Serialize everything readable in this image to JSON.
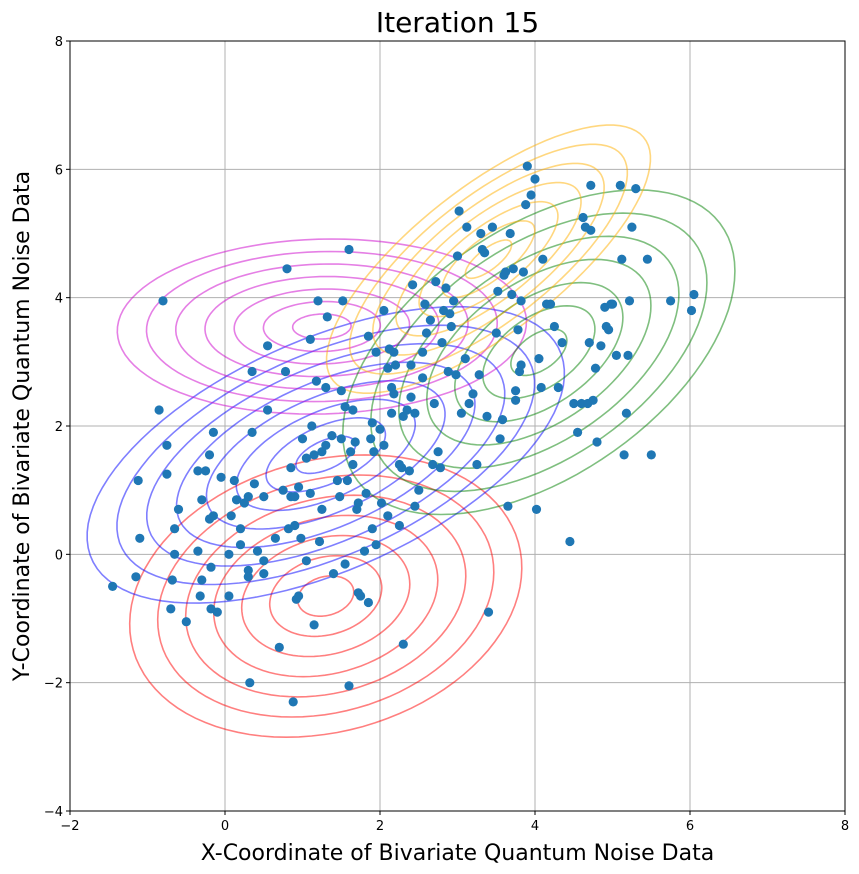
{
  "chart_data": {
    "type": "scatter",
    "title": "Iteration 15",
    "xlabel": "X-Coordinate of Bivariate Quantum Noise Data",
    "ylabel": "Y-Coordinate of Bivariate Quantum Noise Data",
    "xlim": [
      -2,
      8
    ],
    "ylim": [
      -4,
      8
    ],
    "xticks": [
      -2,
      0,
      2,
      4,
      6,
      8
    ],
    "yticks": [
      -4,
      -2,
      0,
      2,
      4,
      6,
      8
    ],
    "grid": true,
    "marker_color": "#1f77b4",
    "points": [
      [
        -1.45,
        -0.5
      ],
      [
        -1.15,
        -0.35
      ],
      [
        -1.12,
        1.15
      ],
      [
        -1.1,
        0.25
      ],
      [
        -0.85,
        2.25
      ],
      [
        -0.8,
        3.95
      ],
      [
        -0.75,
        1.7
      ],
      [
        -0.75,
        1.25
      ],
      [
        -0.7,
        -0.85
      ],
      [
        -0.68,
        -0.4
      ],
      [
        -0.65,
        0.0
      ],
      [
        -0.65,
        0.4
      ],
      [
        -0.6,
        0.7
      ],
      [
        -0.5,
        -1.05
      ],
      [
        -0.35,
        1.3
      ],
      [
        -0.35,
        0.05
      ],
      [
        -0.32,
        -0.65
      ],
      [
        -0.3,
        -0.4
      ],
      [
        -0.3,
        0.85
      ],
      [
        -0.25,
        1.3
      ],
      [
        -0.2,
        0.55
      ],
      [
        -0.18,
        -0.2
      ],
      [
        -0.2,
        1.55
      ],
      [
        -0.15,
        0.6
      ],
      [
        -0.15,
        1.9
      ],
      [
        -0.18,
        -0.85
      ],
      [
        -0.1,
        -0.9
      ],
      [
        -0.05,
        1.2
      ],
      [
        0.05,
        0.0
      ],
      [
        0.05,
        -0.65
      ],
      [
        0.08,
        0.6
      ],
      [
        0.12,
        1.15
      ],
      [
        0.15,
        0.85
      ],
      [
        0.15,
        0.85
      ],
      [
        0.2,
        0.4
      ],
      [
        0.2,
        0.15
      ],
      [
        0.25,
        0.8
      ],
      [
        0.3,
        0.9
      ],
      [
        0.3,
        -0.25
      ],
      [
        0.3,
        -0.35
      ],
      [
        0.32,
        -2.0
      ],
      [
        0.35,
        2.85
      ],
      [
        0.38,
        1.1
      ],
      [
        0.35,
        1.9
      ],
      [
        0.42,
        0.05
      ],
      [
        0.5,
        -0.1
      ],
      [
        0.5,
        0.9
      ],
      [
        0.5,
        -0.3
      ],
      [
        0.55,
        2.25
      ],
      [
        0.55,
        3.25
      ],
      [
        0.65,
        0.25
      ],
      [
        0.7,
        -1.45
      ],
      [
        0.75,
        1.0
      ],
      [
        0.78,
        2.85
      ],
      [
        0.8,
        4.45
      ],
      [
        0.82,
        0.4
      ],
      [
        0.85,
        0.9
      ],
      [
        0.85,
        1.35
      ],
      [
        0.88,
        -2.3
      ],
      [
        0.9,
        0.45
      ],
      [
        0.9,
        0.9
      ],
      [
        0.92,
        -0.7
      ],
      [
        0.95,
        1.05
      ],
      [
        0.95,
        -0.65
      ],
      [
        0.98,
        0.25
      ],
      [
        1.0,
        1.8
      ],
      [
        1.05,
        1.5
      ],
      [
        1.05,
        -0.1
      ],
      [
        1.1,
        3.35
      ],
      [
        1.1,
        0.95
      ],
      [
        1.12,
        2.0
      ],
      [
        1.15,
        1.55
      ],
      [
        1.15,
        -1.1
      ],
      [
        1.18,
        2.7
      ],
      [
        1.2,
        3.95
      ],
      [
        1.22,
        0.2
      ],
      [
        1.25,
        1.6
      ],
      [
        1.25,
        0.7
      ],
      [
        1.3,
        1.7
      ],
      [
        1.3,
        2.6
      ],
      [
        1.32,
        3.7
      ],
      [
        1.38,
        1.85
      ],
      [
        1.4,
        -0.3
      ],
      [
        1.45,
        1.15
      ],
      [
        1.48,
        0.9
      ],
      [
        1.5,
        1.8
      ],
      [
        1.5,
        2.55
      ],
      [
        1.52,
        3.95
      ],
      [
        1.55,
        2.3
      ],
      [
        1.55,
        -0.15
      ],
      [
        1.58,
        1.15
      ],
      [
        1.6,
        -2.05
      ],
      [
        1.6,
        4.75
      ],
      [
        1.62,
        1.6
      ],
      [
        1.65,
        1.4
      ],
      [
        1.65,
        2.25
      ],
      [
        1.68,
        1.75
      ],
      [
        1.7,
        0.7
      ],
      [
        1.72,
        0.8
      ],
      [
        1.72,
        -0.6
      ],
      [
        1.75,
        -0.65
      ],
      [
        1.8,
        0.05
      ],
      [
        1.82,
        0.95
      ],
      [
        1.85,
        3.4
      ],
      [
        1.85,
        -0.75
      ],
      [
        1.88,
        1.8
      ],
      [
        1.9,
        0.4
      ],
      [
        1.9,
        2.05
      ],
      [
        1.92,
        1.6
      ],
      [
        1.95,
        3.15
      ],
      [
        1.95,
        0.15
      ],
      [
        2.0,
        1.95
      ],
      [
        2.02,
        0.8
      ],
      [
        2.05,
        1.7
      ],
      [
        2.05,
        3.8
      ],
      [
        2.1,
        0.6
      ],
      [
        2.1,
        2.9
      ],
      [
        2.12,
        3.2
      ],
      [
        2.15,
        2.2
      ],
      [
        2.15,
        2.6
      ],
      [
        2.18,
        2.5
      ],
      [
        2.18,
        3.15
      ],
      [
        2.2,
        2.95
      ],
      [
        2.25,
        1.4
      ],
      [
        2.25,
        0.45
      ],
      [
        2.28,
        1.35
      ],
      [
        2.3,
        2.15
      ],
      [
        2.3,
        -1.4
      ],
      [
        2.35,
        2.25
      ],
      [
        2.38,
        1.3
      ],
      [
        2.4,
        2.95
      ],
      [
        2.4,
        2.45
      ],
      [
        2.42,
        4.2
      ],
      [
        2.45,
        2.2
      ],
      [
        2.45,
        0.75
      ],
      [
        2.5,
        1.0
      ],
      [
        2.55,
        2.75
      ],
      [
        2.55,
        3.15
      ],
      [
        2.58,
        3.9
      ],
      [
        2.6,
        3.45
      ],
      [
        2.65,
        3.65
      ],
      [
        2.68,
        1.4
      ],
      [
        2.7,
        2.35
      ],
      [
        2.72,
        4.25
      ],
      [
        2.75,
        1.6
      ],
      [
        2.78,
        1.35
      ],
      [
        2.8,
        3.3
      ],
      [
        2.82,
        3.8
      ],
      [
        2.85,
        4.15
      ],
      [
        2.88,
        2.85
      ],
      [
        2.9,
        3.75
      ],
      [
        2.92,
        3.55
      ],
      [
        2.95,
        3.95
      ],
      [
        2.98,
        2.8
      ],
      [
        3.0,
        4.65
      ],
      [
        3.02,
        5.35
      ],
      [
        3.05,
        2.2
      ],
      [
        3.1,
        3.05
      ],
      [
        3.12,
        5.1
      ],
      [
        3.15,
        2.35
      ],
      [
        3.2,
        2.5
      ],
      [
        3.25,
        1.4
      ],
      [
        3.28,
        2.8
      ],
      [
        3.3,
        5.0
      ],
      [
        3.32,
        4.75
      ],
      [
        3.35,
        4.7
      ],
      [
        3.38,
        2.15
      ],
      [
        3.4,
        -0.9
      ],
      [
        3.45,
        5.1
      ],
      [
        3.5,
        3.45
      ],
      [
        3.52,
        4.1
      ],
      [
        3.55,
        1.8
      ],
      [
        3.58,
        2.1
      ],
      [
        3.6,
        4.35
      ],
      [
        3.62,
        4.4
      ],
      [
        3.65,
        0.75
      ],
      [
        3.68,
        5.0
      ],
      [
        3.7,
        4.05
      ],
      [
        3.72,
        4.45
      ],
      [
        3.75,
        2.4
      ],
      [
        3.75,
        2.55
      ],
      [
        3.78,
        3.5
      ],
      [
        3.8,
        2.85
      ],
      [
        3.82,
        2.95
      ],
      [
        3.82,
        3.95
      ],
      [
        3.85,
        4.4
      ],
      [
        3.88,
        5.45
      ],
      [
        3.9,
        6.05
      ],
      [
        3.95,
        5.6
      ],
      [
        4.0,
        5.85
      ],
      [
        4.02,
        0.7
      ],
      [
        4.05,
        3.05
      ],
      [
        4.08,
        2.6
      ],
      [
        4.1,
        4.6
      ],
      [
        4.15,
        3.9
      ],
      [
        4.2,
        3.9
      ],
      [
        4.25,
        3.55
      ],
      [
        4.3,
        2.6
      ],
      [
        4.35,
        3.3
      ],
      [
        4.45,
        0.2
      ],
      [
        4.5,
        2.35
      ],
      [
        4.55,
        1.9
      ],
      [
        4.6,
        2.35
      ],
      [
        4.62,
        5.25
      ],
      [
        4.65,
        5.1
      ],
      [
        4.68,
        2.35
      ],
      [
        4.7,
        3.3
      ],
      [
        4.72,
        5.05
      ],
      [
        4.72,
        5.75
      ],
      [
        4.75,
        2.4
      ],
      [
        4.78,
        2.9
      ],
      [
        4.8,
        1.75
      ],
      [
        4.85,
        3.25
      ],
      [
        4.9,
        3.85
      ],
      [
        4.92,
        3.55
      ],
      [
        4.95,
        3.5
      ],
      [
        4.98,
        3.9
      ],
      [
        5.0,
        3.9
      ],
      [
        5.05,
        3.1
      ],
      [
        5.1,
        5.75
      ],
      [
        5.12,
        4.6
      ],
      [
        5.15,
        1.55
      ],
      [
        5.18,
        2.2
      ],
      [
        5.2,
        3.1
      ],
      [
        5.22,
        3.95
      ],
      [
        5.25,
        5.1
      ],
      [
        5.3,
        5.7
      ],
      [
        5.45,
        4.6
      ],
      [
        5.5,
        1.55
      ],
      [
        5.75,
        3.95
      ],
      [
        6.02,
        3.8
      ],
      [
        6.05,
        4.05
      ]
    ],
    "components": [
      {
        "name": "red",
        "color": "#ff0000",
        "mean": [
          1.3,
          -0.65
        ],
        "sx": 1.15,
        "sy": 1.0,
        "rho": 0.2,
        "levels": 7
      },
      {
        "name": "blue",
        "color": "#0000ff",
        "mean": [
          1.3,
          1.55
        ],
        "sx": 1.4,
        "sy": 1.05,
        "rho": 0.55,
        "levels": 8
      },
      {
        "name": "violet",
        "color": "#cc00cc",
        "mean": [
          1.25,
          3.55
        ],
        "sx": 1.2,
        "sy": 0.62,
        "rho": 0.05,
        "levels": 7
      },
      {
        "name": "green",
        "color": "#008000",
        "mean": [
          4.05,
          3.15
        ],
        "sx": 1.15,
        "sy": 1.15,
        "rho": 0.5,
        "levels": 7
      },
      {
        "name": "gold",
        "color": "#ffb000",
        "mean": [
          3.4,
          4.6
        ],
        "sx": 0.95,
        "sy": 0.95,
        "rho": 0.75,
        "levels": 7
      }
    ]
  }
}
